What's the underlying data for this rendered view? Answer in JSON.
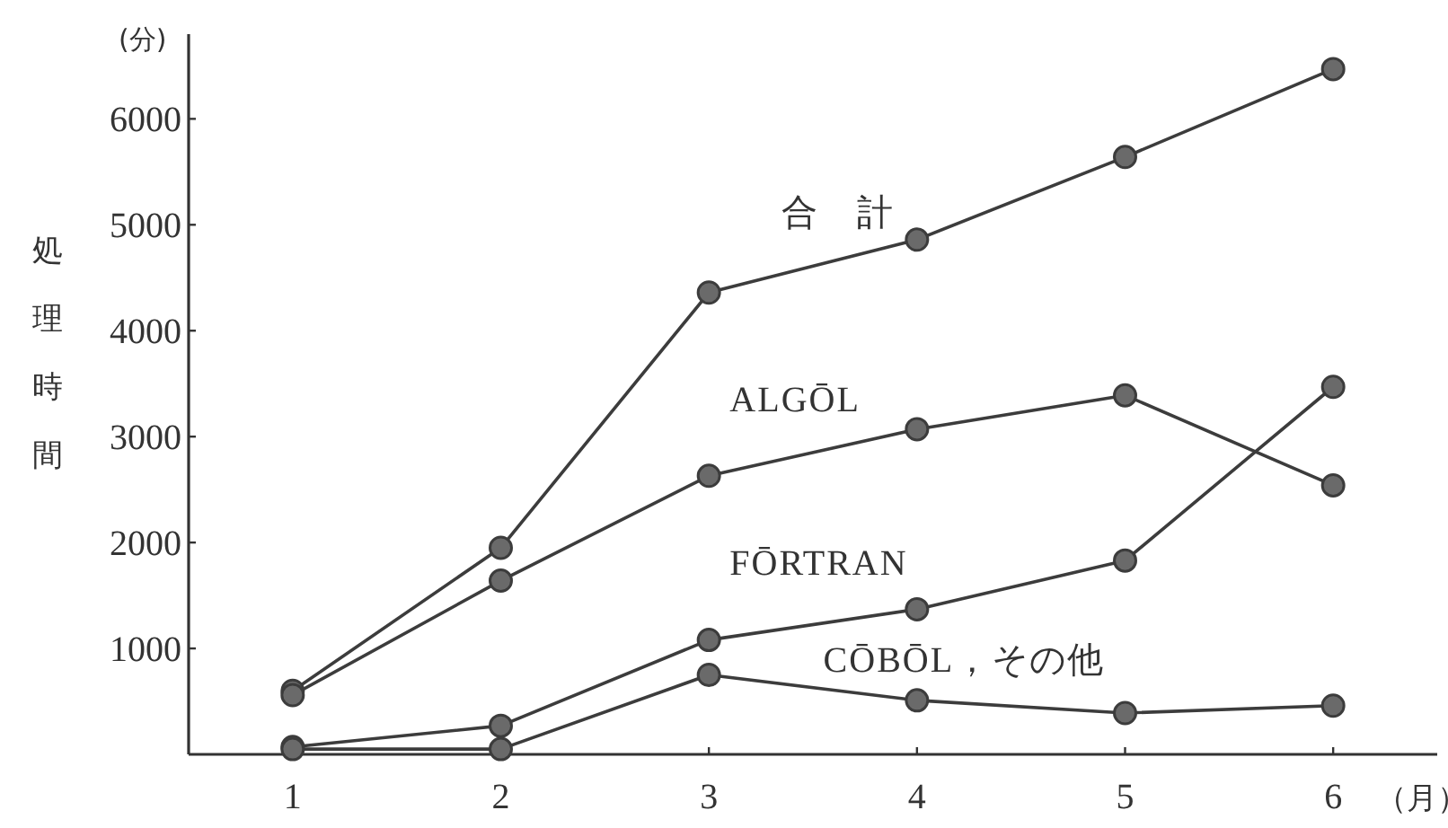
{
  "chart_data": {
    "type": "line",
    "xlabel": "（月）",
    "ylabel": "処理時間",
    "annotations": [
      "(分)"
    ],
    "x": [
      1,
      2,
      3,
      4,
      5,
      6
    ],
    "xlim": [
      0.5,
      6.5
    ],
    "ylim": [
      0,
      6800
    ],
    "xticks": [
      1,
      2,
      3,
      4,
      5,
      6
    ],
    "yticks": [
      1000,
      2000,
      3000,
      4000,
      5000,
      6000
    ],
    "grid": false,
    "legend": false,
    "marker": "circle",
    "line_style": "solid",
    "series": [
      {
        "name": "合　計",
        "color": "#3c3c3c",
        "values": [
          600,
          1950,
          4360,
          4860,
          5640,
          6470
        ]
      },
      {
        "name": "ALGŌL",
        "color": "#3c3c3c",
        "values": [
          560,
          1640,
          2630,
          3070,
          3390,
          2540
        ]
      },
      {
        "name": "FŌRTRAN",
        "color": "#3c3c3c",
        "values": [
          70,
          270,
          1080,
          1370,
          1830,
          3470
        ]
      },
      {
        "name": "CŌBŌL，その他",
        "color": "#3c3c3c",
        "values": [
          50,
          50,
          750,
          510,
          390,
          460
        ]
      }
    ]
  }
}
